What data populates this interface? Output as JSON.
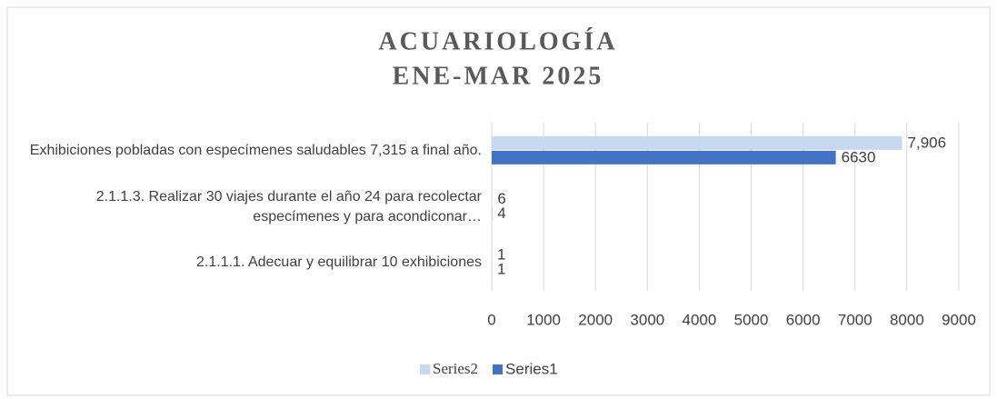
{
  "chart_data": {
    "type": "bar",
    "orientation": "horizontal",
    "title": [
      "ACUARIOLOGÍA",
      "ENE-MAR 2025"
    ],
    "categories": [
      "Exhibiciones pobladas con especímenes saludables 7,315 a final año.",
      "2.1.1.3. Realizar  30 viajes durante el año 24 para recolectar especímenes y para acondiconar…",
      "2.1.1.1. Adecuar y equilibrar 10 exhibiciones"
    ],
    "series": [
      {
        "name": "Series2",
        "color": "#c6d9f1",
        "values": [
          7906,
          6,
          1
        ],
        "value_labels": [
          "7,906",
          "6",
          "1"
        ]
      },
      {
        "name": "Series1",
        "color": "#4472c4",
        "values": [
          6630,
          4,
          1
        ]
      }
    ],
    "xlim": [
      0,
      9000
    ],
    "xticks": [
      0,
      1000,
      2000,
      3000,
      4000,
      5000,
      6000,
      7000,
      8000,
      9000
    ],
    "grid": true,
    "legend": "bottom"
  }
}
